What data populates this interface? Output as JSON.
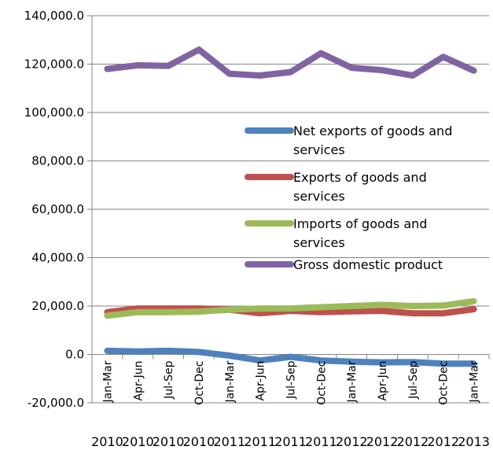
{
  "chart_data": {
    "type": "line",
    "categories": [
      "Jan-Mar",
      "Apr-Jun",
      "Jul-Sep",
      "Oct-Dec",
      "Jan-Mar",
      "Apr-Jun",
      "Jul-Sep",
      "Oct-Dec",
      "Jan-Mar",
      "Apr-Jun",
      "Jul-Sep",
      "Oct-Dec",
      "Jan-Mar"
    ],
    "years": [
      "2010",
      "2010",
      "2010",
      "2010",
      "2011",
      "2011",
      "2011",
      "2011",
      "2012",
      "2012",
      "2012",
      "2012",
      "2013"
    ],
    "ylim": [
      -20000,
      140000
    ],
    "yticks": [
      -20000,
      0,
      20000,
      40000,
      60000,
      80000,
      100000,
      120000,
      140000
    ],
    "ytick_labels": [
      "-20,000.0",
      "0.0",
      "20,000.0",
      "40,000.0",
      "60,000.0",
      "80,000.0",
      "100,000.0",
      "120,000.0",
      "140,000.0"
    ],
    "grid": "horizontal",
    "legend_position": "right-center",
    "series": [
      {
        "name_lines": [
          "Net exports of goods and",
          "services"
        ],
        "color": "#4f81bd",
        "values": [
          1500,
          1200,
          1500,
          1000,
          -500,
          -2500,
          -1000,
          -2500,
          -3000,
          -3300,
          -3200,
          -3800,
          -3800
        ]
      },
      {
        "name_lines": [
          "Exports of goods and",
          "services"
        ],
        "color": "#c0504d",
        "values": [
          17500,
          19000,
          19000,
          19000,
          18500,
          17000,
          18000,
          17500,
          17800,
          18000,
          17000,
          17000,
          18700
        ]
      },
      {
        "name_lines": [
          "Imports of goods and",
          "services"
        ],
        "color": "#9bbb59",
        "values": [
          16000,
          17500,
          17500,
          17700,
          18500,
          19000,
          19000,
          19500,
          20000,
          20500,
          20000,
          20200,
          22000
        ]
      },
      {
        "name_lines": [
          "Gross domestic product"
        ],
        "color": "#8064a2",
        "values": [
          118000,
          119500,
          119300,
          126000,
          116000,
          115300,
          116700,
          124500,
          118500,
          117500,
          115300,
          123000,
          117300
        ]
      }
    ]
  }
}
